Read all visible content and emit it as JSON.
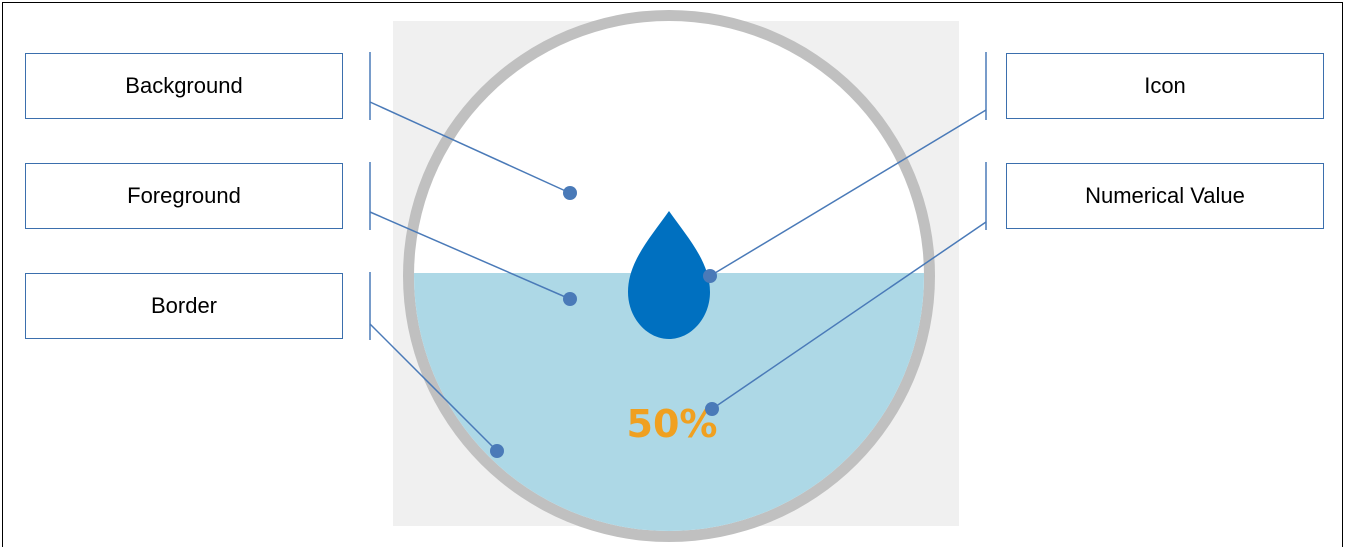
{
  "labels": {
    "background": "Background",
    "foreground": "Foreground",
    "border": "Border",
    "icon": "Icon",
    "numerical_value": "Numerical Value"
  },
  "gauge": {
    "value_text": "50%",
    "fill_fraction": 0.5,
    "colors": {
      "panel": "#f0f0f0",
      "border": "#c0c0c0",
      "background": "#ffffff",
      "foreground": "#add8e6",
      "icon": "#0070c0",
      "value_text": "#f0a020",
      "leader": "#4a7ab8"
    },
    "icon_name": "water-drop-icon"
  }
}
